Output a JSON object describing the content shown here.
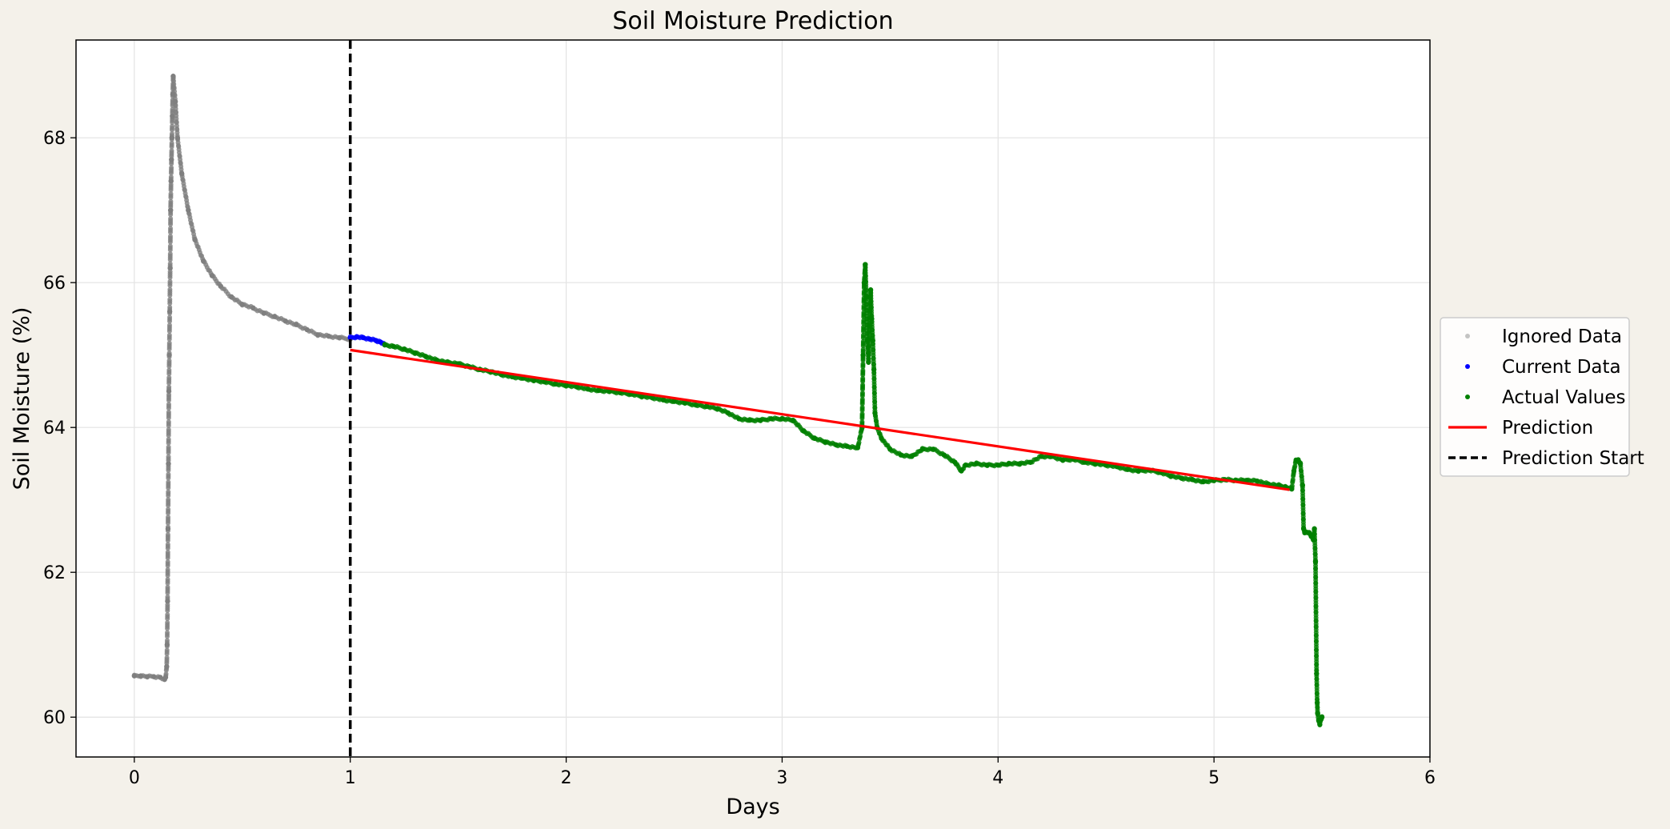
{
  "chart_data": {
    "type": "scatter",
    "title": "Soil Moisture Prediction",
    "xlabel": "Days",
    "ylabel": "Soil Moisture (%)",
    "xlim": [
      -0.27,
      6.0
    ],
    "ylim": [
      59.45,
      69.35
    ],
    "xticks": [
      0,
      1,
      2,
      3,
      4,
      5,
      6
    ],
    "yticks": [
      60,
      62,
      64,
      66,
      68
    ],
    "grid": true,
    "legend_position": "right-center",
    "prediction_start_x": 1.0,
    "series": [
      {
        "name": "Ignored Data",
        "kind": "points",
        "color": "#7f7f7f",
        "points": [
          [
            0.0,
            60.57
          ],
          [
            0.03,
            60.57
          ],
          [
            0.06,
            60.56
          ],
          [
            0.09,
            60.56
          ],
          [
            0.12,
            60.55
          ],
          [
            0.14,
            60.52
          ],
          [
            0.145,
            60.55
          ],
          [
            0.15,
            60.7
          ],
          [
            0.152,
            61.0
          ],
          [
            0.154,
            61.6
          ],
          [
            0.156,
            62.6
          ],
          [
            0.158,
            63.5
          ],
          [
            0.16,
            64.5
          ],
          [
            0.162,
            65.0
          ],
          [
            0.164,
            65.6
          ],
          [
            0.166,
            66.2
          ],
          [
            0.168,
            67.0
          ],
          [
            0.17,
            67.4
          ],
          [
            0.172,
            67.7
          ],
          [
            0.174,
            68.0
          ],
          [
            0.176,
            68.3
          ],
          [
            0.178,
            68.6
          ],
          [
            0.18,
            68.85
          ],
          [
            0.19,
            68.5
          ],
          [
            0.2,
            68.0
          ],
          [
            0.22,
            67.5
          ],
          [
            0.25,
            67.0
          ],
          [
            0.28,
            66.6
          ],
          [
            0.32,
            66.3
          ],
          [
            0.36,
            66.1
          ],
          [
            0.4,
            65.95
          ],
          [
            0.45,
            65.8
          ],
          [
            0.5,
            65.7
          ],
          [
            0.55,
            65.65
          ],
          [
            0.6,
            65.58
          ],
          [
            0.65,
            65.53
          ],
          [
            0.7,
            65.47
          ],
          [
            0.75,
            65.42
          ],
          [
            0.8,
            65.35
          ],
          [
            0.85,
            65.28
          ],
          [
            0.9,
            65.26
          ],
          [
            0.95,
            65.24
          ],
          [
            1.0,
            65.22
          ]
        ]
      },
      {
        "name": "Current Data",
        "kind": "points",
        "color": "#0000ff",
        "points": [
          [
            1.0,
            65.24
          ],
          [
            1.03,
            65.25
          ],
          [
            1.06,
            65.24
          ],
          [
            1.09,
            65.22
          ],
          [
            1.12,
            65.2
          ],
          [
            1.14,
            65.18
          ],
          [
            1.16,
            65.14
          ]
        ]
      },
      {
        "name": "Actual Values",
        "kind": "points",
        "color": "#008000",
        "points": [
          [
            1.16,
            65.14
          ],
          [
            1.2,
            65.12
          ],
          [
            1.25,
            65.08
          ],
          [
            1.3,
            65.03
          ],
          [
            1.35,
            64.98
          ],
          [
            1.4,
            64.93
          ],
          [
            1.45,
            64.9
          ],
          [
            1.5,
            64.88
          ],
          [
            1.55,
            64.84
          ],
          [
            1.6,
            64.8
          ],
          [
            1.65,
            64.77
          ],
          [
            1.7,
            64.73
          ],
          [
            1.75,
            64.7
          ],
          [
            1.8,
            64.68
          ],
          [
            1.85,
            64.65
          ],
          [
            1.9,
            64.63
          ],
          [
            1.95,
            64.6
          ],
          [
            2.0,
            64.58
          ],
          [
            2.05,
            64.56
          ],
          [
            2.1,
            64.53
          ],
          [
            2.15,
            64.51
          ],
          [
            2.2,
            64.5
          ],
          [
            2.25,
            64.48
          ],
          [
            2.3,
            64.46
          ],
          [
            2.35,
            64.43
          ],
          [
            2.4,
            64.41
          ],
          [
            2.45,
            64.38
          ],
          [
            2.5,
            64.36
          ],
          [
            2.55,
            64.34
          ],
          [
            2.6,
            64.31
          ],
          [
            2.65,
            64.29
          ],
          [
            2.7,
            64.26
          ],
          [
            2.75,
            64.2
          ],
          [
            2.8,
            64.12
          ],
          [
            2.85,
            64.1
          ],
          [
            2.9,
            64.1
          ],
          [
            2.95,
            64.12
          ],
          [
            3.0,
            64.12
          ],
          [
            3.05,
            64.1
          ],
          [
            3.1,
            63.95
          ],
          [
            3.15,
            63.85
          ],
          [
            3.2,
            63.8
          ],
          [
            3.25,
            63.76
          ],
          [
            3.3,
            63.74
          ],
          [
            3.35,
            63.72
          ],
          [
            3.37,
            64.0
          ],
          [
            3.375,
            65.0
          ],
          [
            3.38,
            66.0
          ],
          [
            3.385,
            66.25
          ],
          [
            3.39,
            65.8
          ],
          [
            3.395,
            65.2
          ],
          [
            3.4,
            64.9
          ],
          [
            3.405,
            65.4
          ],
          [
            3.41,
            65.9
          ],
          [
            3.415,
            65.5
          ],
          [
            3.42,
            65.2
          ],
          [
            3.425,
            64.8
          ],
          [
            3.43,
            64.2
          ],
          [
            3.44,
            64.0
          ],
          [
            3.46,
            63.85
          ],
          [
            3.5,
            63.7
          ],
          [
            3.55,
            63.62
          ],
          [
            3.6,
            63.6
          ],
          [
            3.65,
            63.7
          ],
          [
            3.7,
            63.7
          ],
          [
            3.75,
            63.62
          ],
          [
            3.8,
            63.52
          ],
          [
            3.83,
            63.4
          ],
          [
            3.85,
            63.48
          ],
          [
            3.9,
            63.5
          ],
          [
            3.95,
            63.48
          ],
          [
            4.0,
            63.48
          ],
          [
            4.05,
            63.5
          ],
          [
            4.1,
            63.5
          ],
          [
            4.15,
            63.52
          ],
          [
            4.2,
            63.6
          ],
          [
            4.25,
            63.6
          ],
          [
            4.3,
            63.55
          ],
          [
            4.35,
            63.56
          ],
          [
            4.4,
            63.52
          ],
          [
            4.45,
            63.5
          ],
          [
            4.5,
            63.48
          ],
          [
            4.55,
            63.46
          ],
          [
            4.6,
            63.42
          ],
          [
            4.65,
            63.4
          ],
          [
            4.7,
            63.41
          ],
          [
            4.75,
            63.38
          ],
          [
            4.8,
            63.33
          ],
          [
            4.85,
            63.3
          ],
          [
            4.9,
            63.28
          ],
          [
            4.95,
            63.25
          ],
          [
            5.0,
            63.27
          ],
          [
            5.05,
            63.28
          ],
          [
            5.1,
            63.27
          ],
          [
            5.15,
            63.27
          ],
          [
            5.2,
            63.26
          ],
          [
            5.25,
            63.22
          ],
          [
            5.3,
            63.2
          ],
          [
            5.33,
            63.18
          ],
          [
            5.36,
            63.15
          ],
          [
            5.37,
            63.4
          ],
          [
            5.38,
            63.55
          ],
          [
            5.39,
            63.55
          ],
          [
            5.4,
            63.5
          ],
          [
            5.41,
            63.2
          ],
          [
            5.415,
            62.6
          ],
          [
            5.42,
            62.55
          ],
          [
            5.43,
            62.55
          ],
          [
            5.44,
            62.55
          ],
          [
            5.45,
            62.5
          ],
          [
            5.46,
            62.45
          ],
          [
            5.465,
            62.6
          ],
          [
            5.47,
            62.15
          ],
          [
            5.475,
            60.6
          ],
          [
            5.478,
            60.2
          ],
          [
            5.48,
            60.05
          ],
          [
            5.485,
            59.95
          ],
          [
            5.49,
            59.9
          ],
          [
            5.495,
            59.97
          ],
          [
            5.5,
            60.0
          ]
        ]
      },
      {
        "name": "Prediction",
        "kind": "line",
        "color": "#ff0000",
        "points": [
          [
            1.0,
            65.07
          ],
          [
            5.35,
            63.14
          ]
        ]
      },
      {
        "name": "Prediction Start",
        "kind": "vline",
        "color": "#000000",
        "x": 1.0
      }
    ]
  }
}
